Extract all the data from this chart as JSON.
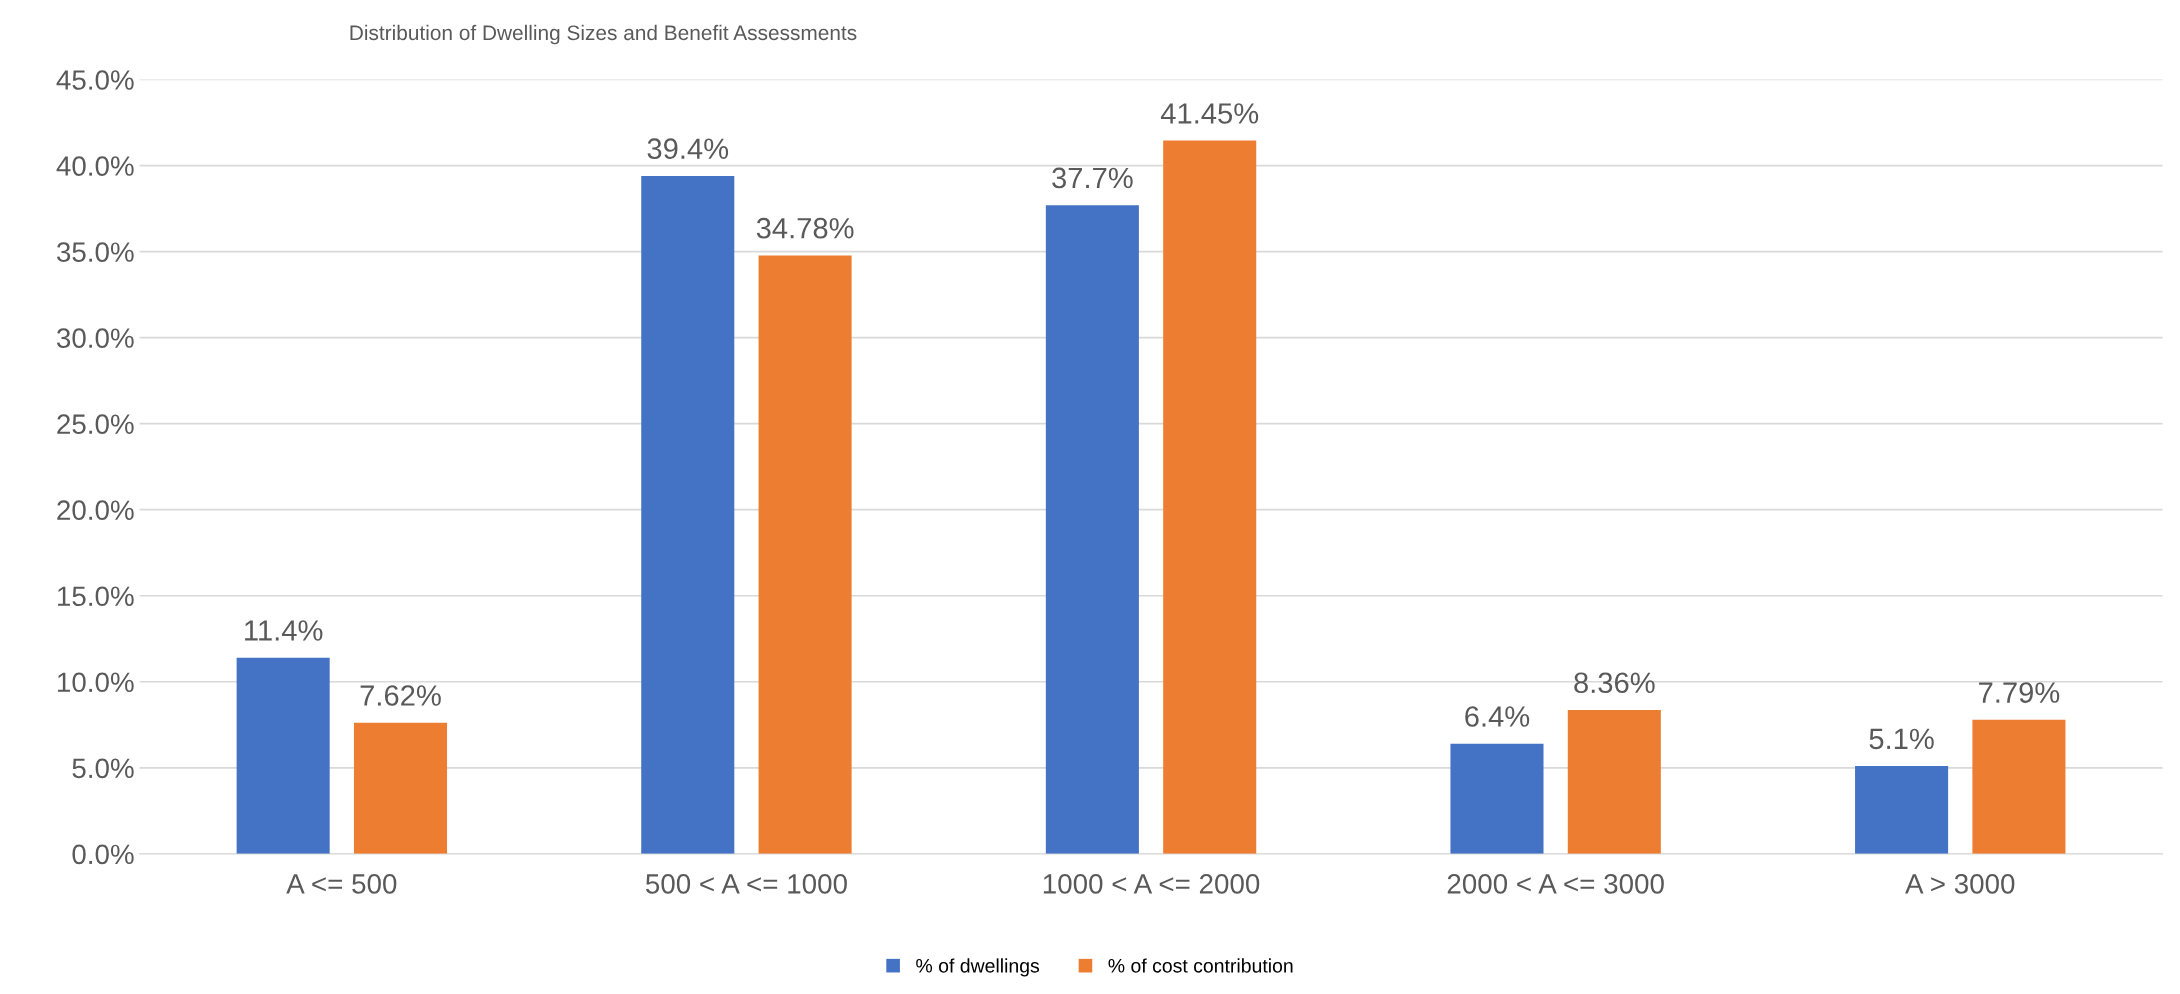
{
  "chart_data": {
    "type": "bar",
    "title": "Distribution of Dwelling Sizes and Benefit Assessments",
    "categories": [
      "A <= 500",
      "500 < A <= 1000",
      "1000 < A <= 2000",
      "2000 < A <= 3000",
      "A > 3000"
    ],
    "series": [
      {
        "name": "% of dwellings",
        "color": "#4472c4",
        "values": [
          11.4,
          39.4,
          37.7,
          6.4,
          5.1
        ],
        "value_labels": [
          "11.4%",
          "39.4%",
          "37.7%",
          "6.4%",
          "5.1%"
        ]
      },
      {
        "name": "% of cost contribution",
        "color": "#ed7d31",
        "values": [
          7.62,
          34.78,
          41.45,
          8.36,
          7.79
        ],
        "value_labels": [
          "7.62%",
          "34.78%",
          "41.45%",
          "8.36%",
          "7.79%"
        ]
      }
    ],
    "ylim": [
      0,
      45
    ],
    "yticks": [
      {
        "value": 0,
        "label": "0.0%"
      },
      {
        "value": 5,
        "label": "5.0%"
      },
      {
        "value": 10,
        "label": "10.0%"
      },
      {
        "value": 15,
        "label": "15.0%"
      },
      {
        "value": 20,
        "label": "20.0%"
      },
      {
        "value": 25,
        "label": "25.0%"
      },
      {
        "value": 30,
        "label": "30.0%"
      },
      {
        "value": 35,
        "label": "35.0%"
      },
      {
        "value": 40,
        "label": "40.0%"
      },
      {
        "value": 45,
        "label": "45.0%"
      }
    ],
    "grid": "y",
    "legend": "bottom"
  }
}
